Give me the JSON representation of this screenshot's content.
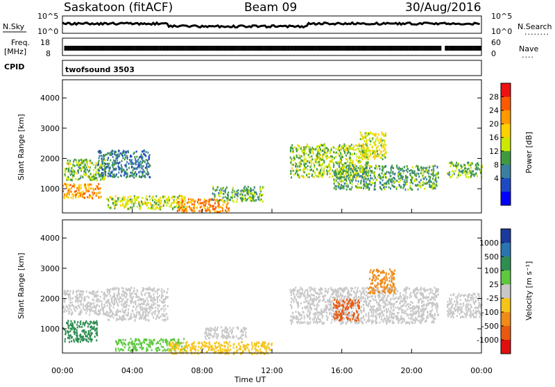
{
  "header": {
    "station": "Saskatoon (fitACF)",
    "beam": "Beam 09",
    "date": "30/Aug/2016"
  },
  "noise_panel": {
    "left_label": "N.Sky",
    "right_label": "N.Search",
    "left_ticks": [
      "10^5",
      "10^0"
    ],
    "right_ticks": [
      "10^5",
      "10^0"
    ],
    "right_dots": "........"
  },
  "freq_panel": {
    "left_label_1": "Freq.",
    "left_label_2": "[MHz]",
    "right_label": "Nave",
    "left_ticks": [
      "18",
      "8"
    ],
    "right_ticks": [
      "60",
      "0"
    ],
    "right_dots": "...."
  },
  "cpid_panel": {
    "label": "CPID",
    "program": "twofsound 3503"
  },
  "power_panel": {
    "ylabel": "Slant Range [km]",
    "yticks": [
      "4000",
      "3000",
      "2000",
      "1000"
    ],
    "colorbar_label": "Power [dB]",
    "colorbar_ticks": [
      "28",
      "24",
      "20",
      "16",
      "12",
      "8",
      "4"
    ],
    "colorbar_colors": [
      "#ee1111",
      "#ff5a00",
      "#ff9900",
      "#ffd000",
      "#cce800",
      "#3f9a3f",
      "#3a7fa0",
      "#1e49c4",
      "#0000ff"
    ]
  },
  "velocity_panel": {
    "ylabel": "Slant Range [km]",
    "yticks": [
      "4000",
      "3000",
      "2000",
      "1000"
    ],
    "colorbar_label": "Velocity [m s⁻¹]",
    "colorbar_ticks": [
      "1000",
      "500",
      "100",
      "25",
      "-25",
      "-100",
      "-500",
      "-1000"
    ],
    "colorbar_colors": [
      "#1a3a9c",
      "#2a74b0",
      "#2e8e52",
      "#5ec93f",
      "#c8c8c8",
      "#f5c418",
      "#f08a18",
      "#e85a10",
      "#e01010"
    ]
  },
  "xaxis": {
    "label": "Time UT",
    "ticks": [
      "00:00",
      "04:00",
      "08:00",
      "12:00",
      "16:00",
      "20:00",
      "00:00"
    ]
  },
  "chart_data": {
    "type": "heatmap",
    "title": "Saskatoon (fitACF)",
    "subtitle": "Beam 09",
    "date": "30/Aug/2016",
    "xlabel": "Time UT",
    "ylabel": "Slant Range [km]",
    "xlim_hours": [
      0,
      24
    ],
    "ylim_km": [
      200,
      4600
    ],
    "xticks": [
      "00:00",
      "04:00",
      "08:00",
      "12:00",
      "16:00",
      "20:00",
      "00:00"
    ],
    "yticks": [
      1000,
      2000,
      3000,
      4000
    ],
    "data_gaps_hours": [
      [
        21.7,
        21.9
      ]
    ],
    "panels": [
      {
        "name": "Power",
        "unit": "dB",
        "colorbar_ticks": [
          4,
          8,
          12,
          16,
          20,
          24,
          28
        ],
        "scatter_regions": [
          {
            "t_start": 0.0,
            "t_end": 2.2,
            "r_start": 700,
            "r_end": 1200,
            "value": 26
          },
          {
            "t_start": 0.1,
            "t_end": 2.5,
            "r_start": 1300,
            "r_end": 2000,
            "value": 16
          },
          {
            "t_start": 2.0,
            "t_end": 5.0,
            "r_start": 1400,
            "r_end": 2300,
            "value": 10
          },
          {
            "t_start": 2.5,
            "t_end": 7.0,
            "r_start": 350,
            "r_end": 800,
            "value": 18
          },
          {
            "t_start": 6.5,
            "t_end": 9.5,
            "r_start": 250,
            "r_end": 700,
            "value": 27
          },
          {
            "t_start": 8.5,
            "t_end": 11.5,
            "r_start": 600,
            "r_end": 1100,
            "value": 14
          },
          {
            "t_start": 13.0,
            "t_end": 17.5,
            "r_start": 1400,
            "r_end": 2500,
            "value": 17
          },
          {
            "t_start": 15.5,
            "t_end": 21.5,
            "r_start": 1000,
            "r_end": 1800,
            "value": 14
          },
          {
            "t_start": 17.0,
            "t_end": 18.5,
            "r_start": 2000,
            "r_end": 2900,
            "value": 19
          },
          {
            "t_start": 22.0,
            "t_end": 24.0,
            "r_start": 1400,
            "r_end": 1900,
            "value": 15
          }
        ]
      },
      {
        "name": "Velocity",
        "unit": "m s^-1",
        "colorbar_ticks": [
          -1000,
          -500,
          -100,
          -25,
          25,
          100,
          500,
          1000
        ],
        "scatter_regions": [
          {
            "t_start": 0.0,
            "t_end": 2.5,
            "r_start": 1500,
            "r_end": 2300,
            "value": 0
          },
          {
            "t_start": 0.0,
            "t_end": 2.0,
            "r_start": 600,
            "r_end": 1300,
            "value": 150
          },
          {
            "t_start": 2.5,
            "t_end": 6.0,
            "r_start": 1300,
            "r_end": 2400,
            "value": 0
          },
          {
            "t_start": 3.0,
            "t_end": 7.0,
            "r_start": 300,
            "r_end": 700,
            "value": 60
          },
          {
            "t_start": 6.0,
            "t_end": 12.0,
            "r_start": 200,
            "r_end": 600,
            "value": -60
          },
          {
            "t_start": 8.0,
            "t_end": 10.5,
            "r_start": 700,
            "r_end": 1100,
            "value": 0
          },
          {
            "t_start": 13.0,
            "t_end": 21.5,
            "r_start": 1200,
            "r_end": 2400,
            "value": 0
          },
          {
            "t_start": 15.5,
            "t_end": 17.0,
            "r_start": 1300,
            "r_end": 2000,
            "value": -600
          },
          {
            "t_start": 17.5,
            "t_end": 19.0,
            "r_start": 2200,
            "r_end": 3000,
            "value": -200
          },
          {
            "t_start": 22.0,
            "t_end": 24.0,
            "r_start": 1400,
            "r_end": 2200,
            "value": 0
          }
        ]
      }
    ]
  }
}
